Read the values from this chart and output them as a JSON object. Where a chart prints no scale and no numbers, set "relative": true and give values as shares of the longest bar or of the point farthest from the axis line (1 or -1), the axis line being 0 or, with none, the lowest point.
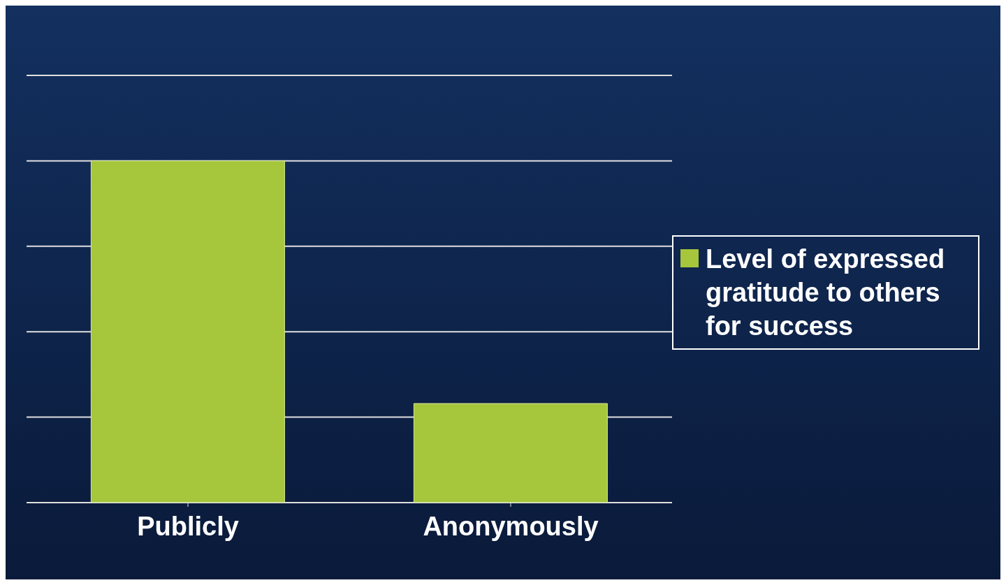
{
  "chart_data": {
    "type": "bar",
    "relative": true,
    "categories": [
      "Publicly",
      "Anonymously"
    ],
    "series": [
      {
        "name": "Level of expressed gratitude to others for success",
        "color": "#a6c63c",
        "values": [
          1,
          0.29
        ]
      }
    ],
    "grid": "y",
    "legend": "right"
  }
}
